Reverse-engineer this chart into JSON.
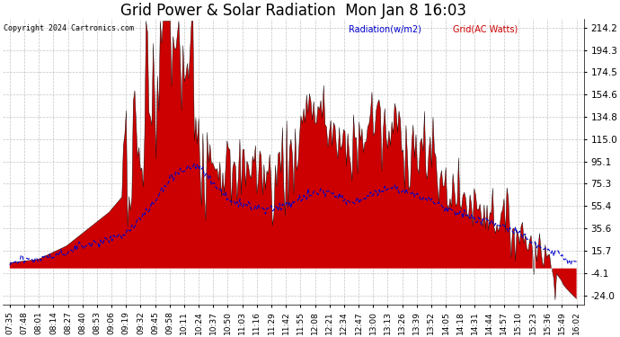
{
  "title": "Grid Power & Solar Radiation  Mon Jan 8 16:03",
  "copyright": "Copyright 2024 Cartronics.com",
  "legend_radiation": "Radiation(w/m2)",
  "legend_grid": "Grid(AC Watts)",
  "yticks": [
    214.2,
    194.3,
    174.5,
    154.6,
    134.8,
    115.0,
    95.1,
    75.3,
    55.4,
    35.6,
    15.7,
    -4.1,
    -24.0
  ],
  "ylim": [
    -32,
    222
  ],
  "background_color": "#ffffff",
  "plot_bg_color": "#ffffff",
  "grid_color": "#aaaaaa",
  "radiation_color": "#0000cc",
  "grid_fill_color": "#cc0000",
  "grid_line_color": "#000000",
  "title_fontsize": 12,
  "tick_fontsize": 7.5,
  "time_labels": [
    "07:35",
    "07:48",
    "08:01",
    "08:14",
    "08:27",
    "08:40",
    "08:53",
    "09:06",
    "09:19",
    "09:32",
    "09:45",
    "09:58",
    "10:11",
    "10:24",
    "10:37",
    "10:50",
    "11:03",
    "11:16",
    "11:29",
    "11:42",
    "11:55",
    "12:08",
    "12:21",
    "12:34",
    "12:47",
    "13:00",
    "13:13",
    "13:26",
    "13:39",
    "13:52",
    "14:05",
    "14:18",
    "14:31",
    "14:44",
    "14:57",
    "15:10",
    "15:23",
    "15:36",
    "15:49",
    "16:02"
  ]
}
